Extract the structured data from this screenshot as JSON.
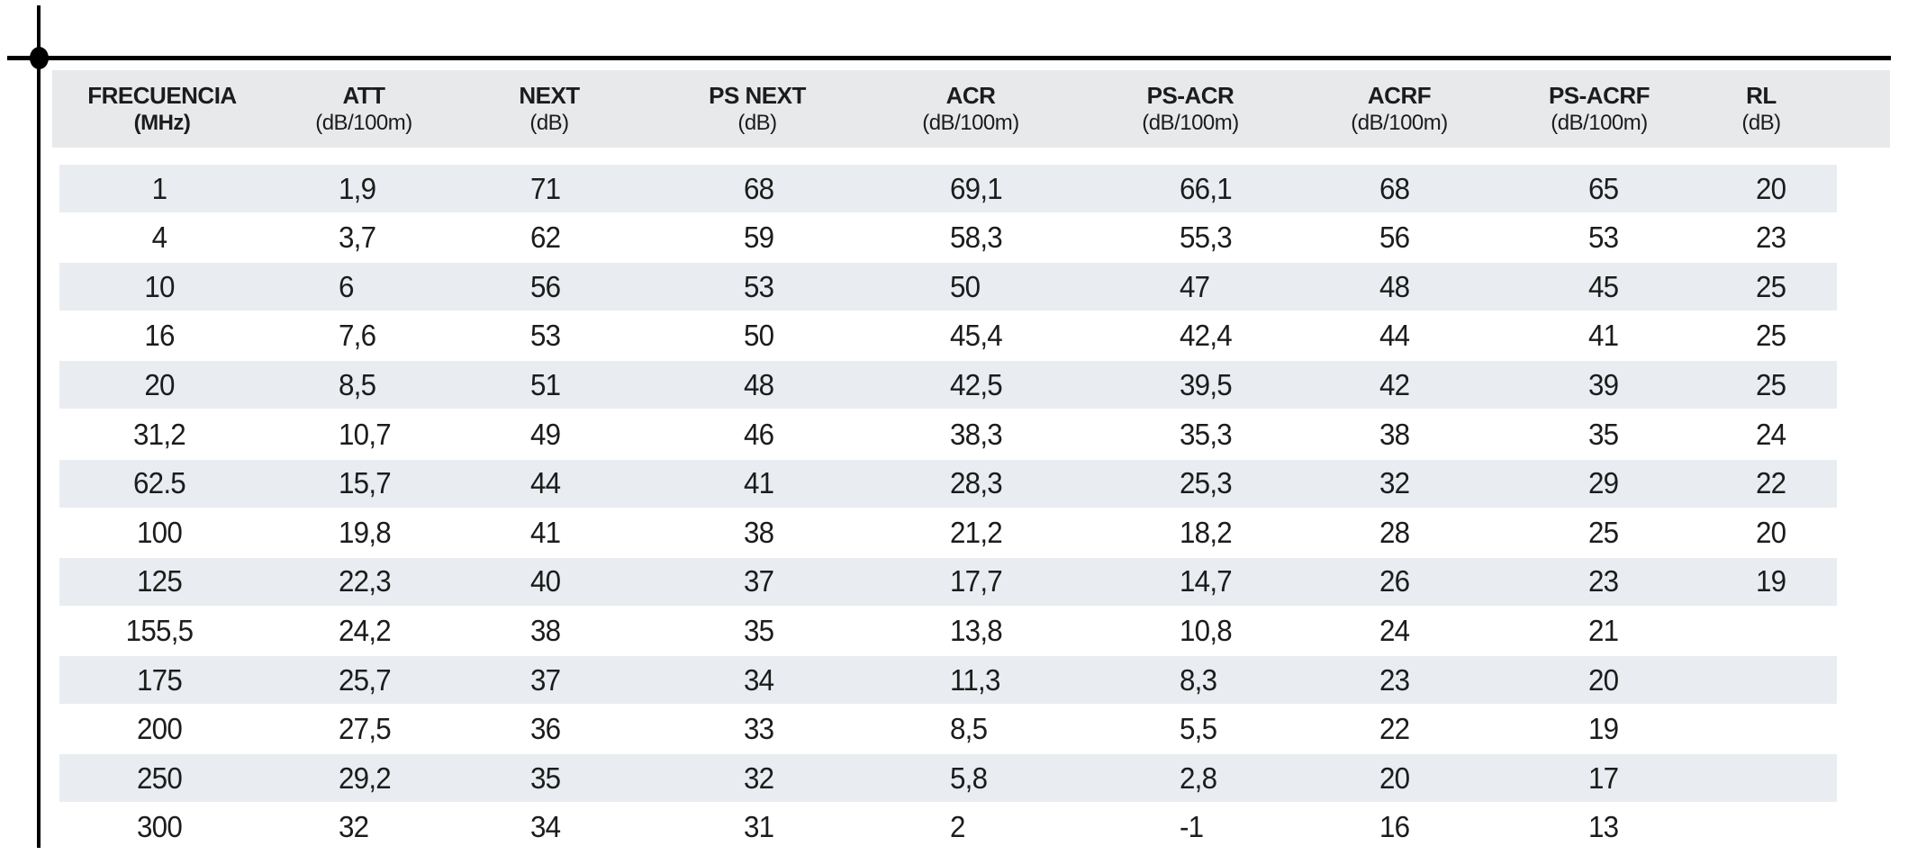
{
  "page": {
    "background_color": "#ffffff",
    "header_band_color": "#e8e9eb",
    "row_band_color": "#e9edf1",
    "line_color": "#000000",
    "text_color": "#1c1c1c"
  },
  "table": {
    "columns": [
      {
        "label": "FRECUENCIA",
        "unit": "(MHz)"
      },
      {
        "label": "ATT",
        "unit": "(dB/100m)"
      },
      {
        "label": "NEXT",
        "unit": "(dB)"
      },
      {
        "label": "PS NEXT",
        "unit": "(dB)"
      },
      {
        "label": "ACR",
        "unit": "(dB/100m)"
      },
      {
        "label": "PS-ACR",
        "unit": "(dB/100m)"
      },
      {
        "label": "ACRF",
        "unit": "(dB/100m)"
      },
      {
        "label": "PS-ACRF",
        "unit": "(dB/100m)"
      },
      {
        "label": "RL",
        "unit": "(dB)"
      }
    ],
    "rows": [
      [
        "1",
        "1,9",
        "71",
        "68",
        "69,1",
        "66,1",
        "68",
        "65",
        "20"
      ],
      [
        "4",
        "3,7",
        "62",
        "59",
        "58,3",
        "55,3",
        "56",
        "53",
        "23"
      ],
      [
        "10",
        "6",
        "56",
        "53",
        "50",
        "47",
        "48",
        "45",
        "25"
      ],
      [
        "16",
        "7,6",
        "53",
        "50",
        "45,4",
        "42,4",
        "44",
        "41",
        "25"
      ],
      [
        "20",
        "8,5",
        "51",
        "48",
        "42,5",
        "39,5",
        "42",
        "39",
        "25"
      ],
      [
        "31,2",
        "10,7",
        "49",
        "46",
        "38,3",
        "35,3",
        "38",
        "35",
        "24"
      ],
      [
        "62.5",
        "15,7",
        "44",
        "41",
        "28,3",
        "25,3",
        "32",
        "29",
        "22"
      ],
      [
        "100",
        "19,8",
        "41",
        "38",
        "21,2",
        "18,2",
        "28",
        "25",
        "20"
      ],
      [
        "125",
        "22,3",
        "40",
        "37",
        "17,7",
        "14,7",
        "26",
        "23",
        "19"
      ],
      [
        "155,5",
        "24,2",
        "38",
        "35",
        "13,8",
        "10,8",
        "24",
        "21",
        ""
      ],
      [
        "175",
        "25,7",
        "37",
        "34",
        "11,3",
        "8,3",
        "23",
        "20",
        ""
      ],
      [
        "200",
        "27,5",
        "36",
        "33",
        "8,5",
        "5,5",
        "22",
        "19",
        ""
      ],
      [
        "250",
        "29,2",
        "35",
        "32",
        "5,8",
        "2,8",
        "20",
        "17",
        ""
      ],
      [
        "300",
        "32",
        "34",
        "31",
        "2",
        "-1",
        "16",
        "13",
        ""
      ]
    ]
  }
}
